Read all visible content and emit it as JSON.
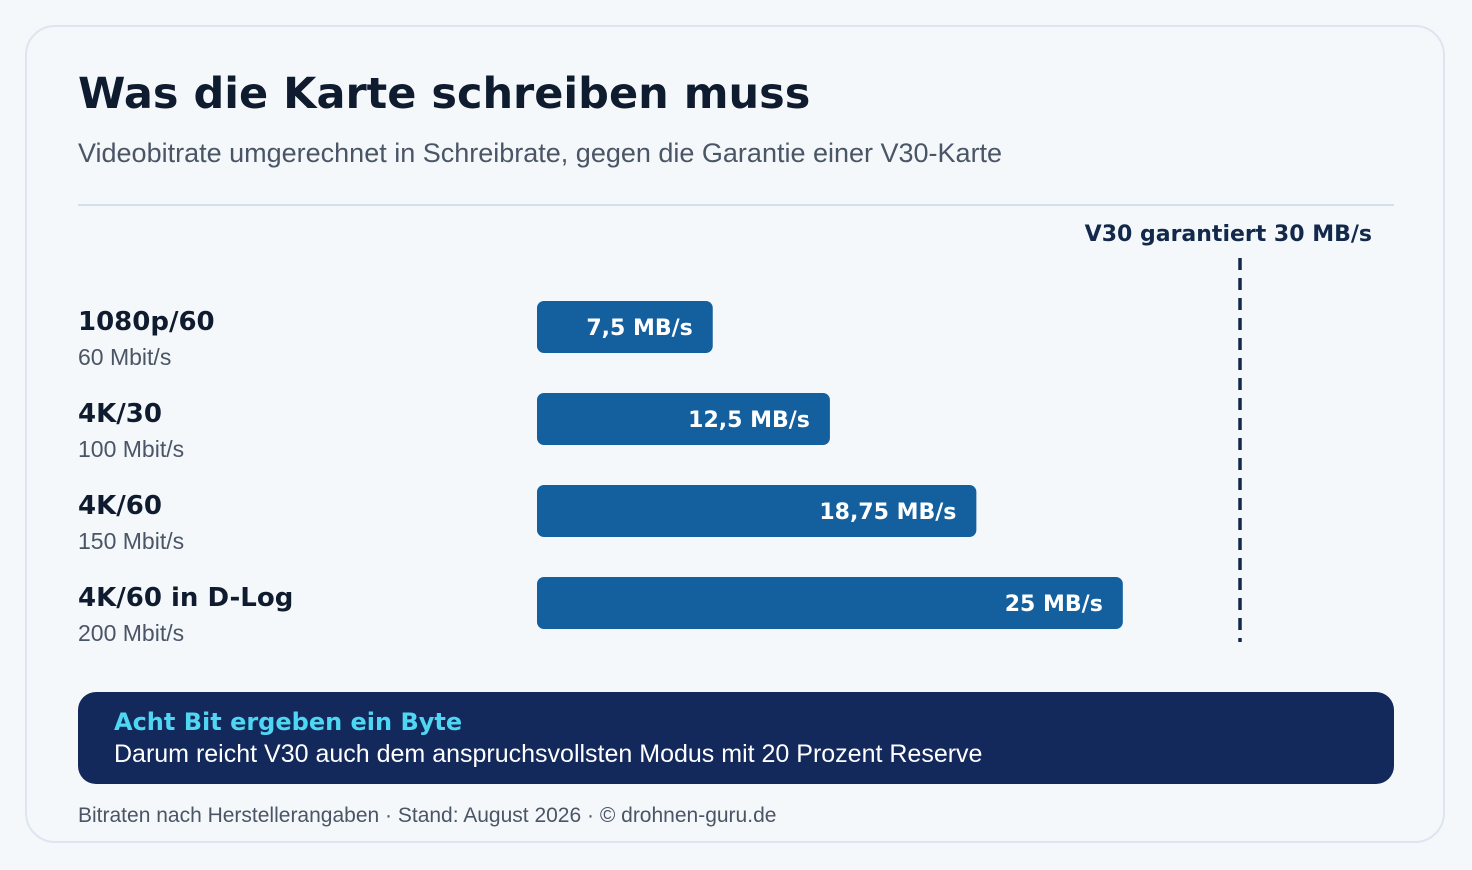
{
  "header": {
    "title": "Was die Karte schreiben muss",
    "subtitle": "Videobitrate umgerechnet in Schreibrate, gegen die Garantie einer V30-Karte"
  },
  "chart_data": {
    "type": "bar",
    "orientation": "horizontal",
    "categories": [
      "1080p/60",
      "4K/30",
      "4K/60",
      "4K/60 in D-Log"
    ],
    "category_sublabels": [
      "60 Mbit/s",
      "100 Mbit/s",
      "150 Mbit/s",
      "200 Mbit/s"
    ],
    "values": [
      7.5,
      12.5,
      18.75,
      25
    ],
    "value_labels": [
      "7,5 MB/s",
      "12,5 MB/s",
      "18,75 MB/s",
      "25 MB/s"
    ],
    "unit": "MB/s",
    "xlim": [
      0,
      30
    ],
    "grid": false,
    "reference_line": {
      "value": 30,
      "label": "V30 garantiert 30 MB/s",
      "style": "dashed"
    },
    "colors": {
      "bar": "#14609f",
      "reference": "#13294b"
    }
  },
  "note": {
    "title": "Acht Bit ergeben ein Byte",
    "text": "Darum reicht V30 auch dem anspruchsvollsten Modus mit 20 Prozent Reserve"
  },
  "footer": {
    "source": "Bitraten nach Herstellerangaben · Stand: August 2026 · © drohnen-guru.de"
  }
}
